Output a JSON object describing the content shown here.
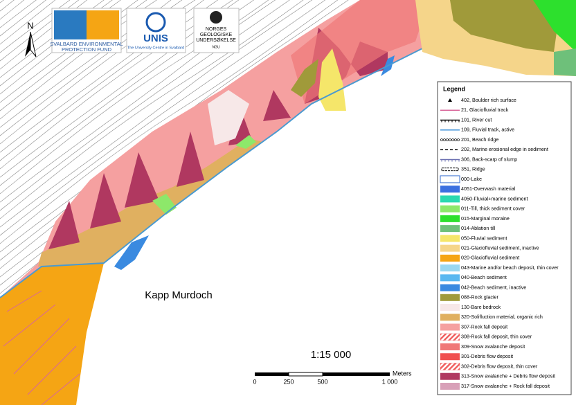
{
  "logos": {
    "sepf": [
      "SVALBARD ENVIRONMENTAL",
      "PROTECTION FUND"
    ],
    "unis": {
      "name": "UNIS",
      "subtitle": "The University Centre in Svalbard"
    },
    "ngu": {
      "name": [
        "NORGES",
        "GEOLOGISKE",
        "UNDERSØKELSE"
      ],
      "abbr": "NGU"
    }
  },
  "north": "N",
  "place_name": "Kapp Murdoch",
  "scale": {
    "ratio": "1:15 000",
    "unit": "Meters",
    "labels": [
      "0",
      "250",
      "500",
      "1 000"
    ]
  },
  "legend": {
    "title": "Legend",
    "items": [
      {
        "label": "402, Boulder rich surface",
        "kind": "marker",
        "color": "#000000"
      },
      {
        "label": "21, Glaciofluvial track",
        "kind": "line",
        "color": "#d9669a"
      },
      {
        "label": "101, River cut",
        "kind": "ticked-line",
        "color": "#000000"
      },
      {
        "label": "109, Fluvial track, active",
        "kind": "line",
        "color": "#3a8fd8"
      },
      {
        "label": "201, Beach ridge",
        "kind": "dotted",
        "color": "#000000"
      },
      {
        "label": "202, Marine erosional edge in sediment",
        "kind": "dashed",
        "color": "#000000"
      },
      {
        "label": "306, Back-scarp of slump",
        "kind": "ticked-line",
        "color": "#6a6fb0"
      },
      {
        "label": "351, Ridge",
        "kind": "double",
        "color": "#000000"
      },
      {
        "label": "000-Lake",
        "kind": "outline",
        "color": "#3a6fd0"
      },
      {
        "label": "4051-Overwash material",
        "kind": "fill",
        "color": "#3b6fe0"
      },
      {
        "label": "4050-Fluvial+marine sediment",
        "kind": "fill",
        "color": "#2ad9b0"
      },
      {
        "label": "011-Till, thick sediment cover",
        "kind": "fill",
        "color": "#8de86a"
      },
      {
        "label": "015-Marginal moraine",
        "kind": "fill",
        "color": "#2de02d"
      },
      {
        "label": "014-Ablation till",
        "kind": "fill",
        "color": "#6ec07a"
      },
      {
        "label": "050-Fluvial sediment",
        "kind": "fill",
        "color": "#f5e66a"
      },
      {
        "label": "021-Glaciofluvial sediment, inactive",
        "kind": "fill",
        "color": "#f5d58a"
      },
      {
        "label": "020-Glaciofluvial sediment",
        "kind": "fill",
        "color": "#f5a514"
      },
      {
        "label": "043-Marine and/or beach deposit, thin cover",
        "kind": "fill",
        "color": "#9ad8f0"
      },
      {
        "label": "040-Beach sediment",
        "kind": "fill",
        "color": "#5ab8f0"
      },
      {
        "label": "042-Beach sediment, inactive",
        "kind": "fill",
        "color": "#3a8ae0"
      },
      {
        "label": "088-Rock glacier",
        "kind": "fill",
        "color": "#a09a3a"
      },
      {
        "label": "130-Bare bedrock",
        "kind": "fill",
        "color": "#f7e8e8"
      },
      {
        "label": "320-Solifluction material, organic rich",
        "kind": "fill",
        "color": "#e0b060"
      },
      {
        "label": "307-Rock fall deposit",
        "kind": "fill",
        "color": "#f5a0a0"
      },
      {
        "label": "308-Rock fall deposit, thin cover",
        "kind": "hatch",
        "color": "#f08080"
      },
      {
        "label": "309-Snow avalanche deposit",
        "kind": "fill",
        "color": "#f07878"
      },
      {
        "label": "301-Debris flow deposit",
        "kind": "fill",
        "color": "#f05050"
      },
      {
        "label": "302-Debris flow deposit, thin cover",
        "kind": "hatch",
        "color": "#f04040"
      },
      {
        "label": "313-Snow avalanche + Debris flow deposit",
        "kind": "fill",
        "color": "#b03860"
      },
      {
        "label": "317-Snow avalanche + Rock fall deposit",
        "kind": "fill",
        "color": "#d8a0b8"
      }
    ]
  }
}
